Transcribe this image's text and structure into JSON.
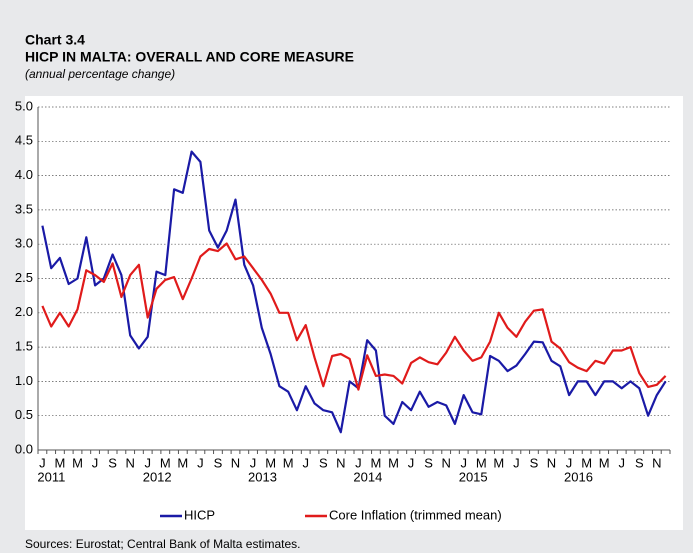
{
  "chart_data": {
    "type": "line",
    "title": "Chart 3.4",
    "subtitle": "HICP IN MALTA: OVERALL AND CORE MEASURE",
    "y_label": "(annual percentage change)",
    "source": "Sources: Eurostat; Central Bank of Malta estimates.",
    "categories": [
      "J",
      null,
      "M",
      null,
      "M",
      null,
      "J",
      null,
      "S",
      null,
      "N",
      null,
      "J",
      null,
      "M",
      null,
      "M",
      null,
      "J",
      null,
      "S",
      null,
      "N",
      null,
      "J",
      null,
      "M",
      null,
      "M",
      null,
      "J",
      null,
      "S",
      null,
      "N",
      null,
      "J",
      null,
      "M",
      null,
      "M",
      null,
      "J",
      null,
      "S",
      null,
      "N",
      null,
      "J",
      null,
      "M",
      null,
      "M",
      null,
      "J",
      null,
      "S",
      null,
      "N",
      null,
      "J",
      null,
      "M",
      null,
      "M",
      null,
      "J",
      null,
      "S",
      null,
      "N",
      null
    ],
    "years": [
      "2011",
      "2012",
      "2013",
      "2014",
      "2015",
      "2016"
    ],
    "series": [
      {
        "name": "HICP",
        "color": "#1a1aa6",
        "values": [
          3.27,
          2.65,
          2.8,
          2.42,
          2.5,
          3.1,
          2.4,
          2.5,
          2.85,
          2.55,
          1.67,
          1.48,
          1.65,
          2.6,
          2.55,
          3.8,
          3.75,
          4.35,
          4.2,
          3.2,
          2.95,
          3.2,
          3.65,
          2.7,
          2.4,
          1.78,
          1.4,
          0.93,
          0.85,
          0.58,
          0.93,
          0.68,
          0.58,
          0.55,
          0.26,
          1.0,
          0.9,
          1.6,
          1.45,
          0.5,
          0.38,
          0.7,
          0.58,
          0.85,
          0.63,
          0.7,
          0.65,
          0.38,
          0.8,
          0.55,
          0.52,
          1.37,
          1.3,
          1.15,
          1.23,
          1.4,
          1.58,
          1.57,
          1.3,
          1.22,
          0.8,
          1.0,
          1.0,
          0.8,
          1.0,
          1.0,
          0.9,
          1.0,
          0.9,
          0.5,
          0.8,
          1.0
        ]
      },
      {
        "name": "Core Inflation (trimmed mean)",
        "color": "#e01b1b",
        "values": [
          2.1,
          1.8,
          2.0,
          1.8,
          2.05,
          2.62,
          2.55,
          2.45,
          2.72,
          2.23,
          2.55,
          2.7,
          1.93,
          2.35,
          2.48,
          2.52,
          2.2,
          2.5,
          2.82,
          2.93,
          2.9,
          3.01,
          2.78,
          2.82,
          2.65,
          2.48,
          2.28,
          2.0,
          2.0,
          1.6,
          1.82,
          1.35,
          0.93,
          1.37,
          1.4,
          1.33,
          0.88,
          1.38,
          1.08,
          1.1,
          1.08,
          0.97,
          1.27,
          1.35,
          1.28,
          1.25,
          1.42,
          1.65,
          1.45,
          1.3,
          1.35,
          1.58,
          2.0,
          1.78,
          1.65,
          1.87,
          2.03,
          2.05,
          1.58,
          1.48,
          1.28,
          1.2,
          1.15,
          1.3,
          1.26,
          1.45,
          1.45,
          1.5,
          1.12,
          0.92,
          0.95,
          1.08
        ]
      }
    ],
    "ylim": [
      0,
      5
    ],
    "yticks": [
      {
        "value": 0,
        "label": "0.0"
      },
      {
        "value": 0.5,
        "label": "0.5"
      },
      {
        "value": 1,
        "label": "1.0"
      },
      {
        "value": 1.5,
        "label": "1.5"
      },
      {
        "value": 2,
        "label": "2.0"
      },
      {
        "value": 2.5,
        "label": "2.5"
      },
      {
        "value": 3,
        "label": "3.0"
      },
      {
        "value": 3.5,
        "label": "3.5"
      },
      {
        "value": 4,
        "label": "4.0"
      },
      {
        "value": 4.5,
        "label": "4.5"
      },
      {
        "value": 5,
        "label": "5.0"
      }
    ],
    "grid": true,
    "legend": "bottom"
  }
}
